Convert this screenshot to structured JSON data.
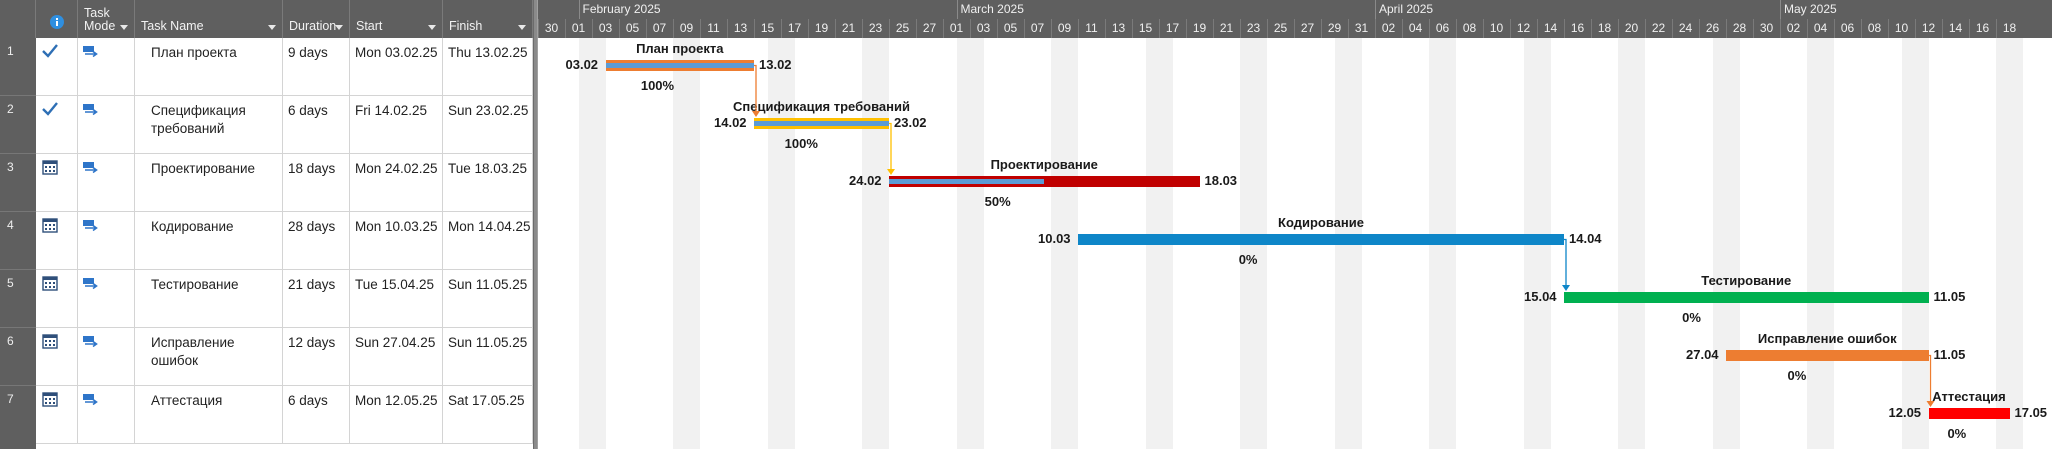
{
  "columns": {
    "info_icon": "info-icon",
    "task_mode": "Task Mode",
    "task_name": "Task Name",
    "duration": "Duration",
    "start": "Start",
    "finish": "Finish"
  },
  "tasks": [
    {
      "id": "1",
      "name": "План проекта",
      "duration": "9 days",
      "start": "Mon 03.02.25",
      "finish": "Thu 13.02.25",
      "status": "complete",
      "bar_start": "03.02",
      "bar_end": "13.02",
      "percent": "100%",
      "progress": 1.0,
      "color": "#ed7d31",
      "progress_color": "#5b9bd5"
    },
    {
      "id": "2",
      "name": "Спецификация требований",
      "duration": "6 days",
      "start": "Fri 14.02.25",
      "finish": "Sun 23.02.25",
      "status": "complete",
      "bar_start": "14.02",
      "bar_end": "23.02",
      "percent": "100%",
      "progress": 1.0,
      "color": "#ffc000",
      "progress_color": "#5b9bd5"
    },
    {
      "id": "3",
      "name": "Проектирование",
      "duration": "18 days",
      "start": "Mon 24.02.25",
      "finish": "Tue 18.03.25",
      "status": "scheduled",
      "bar_start": "24.02",
      "bar_end": "18.03",
      "percent": "50%",
      "progress": 0.5,
      "color": "#c00000",
      "progress_color": "#5b9bd5"
    },
    {
      "id": "4",
      "name": "Кодирование",
      "duration": "28 days",
      "start": "Mon 10.03.25",
      "finish": "Mon 14.04.25",
      "status": "scheduled",
      "bar_start": "10.03",
      "bar_end": "14.04",
      "percent": "0%",
      "progress": 0,
      "color": "#0e86c8",
      "progress_color": "#5b9bd5"
    },
    {
      "id": "5",
      "name": "Тестирование",
      "duration": "21 days",
      "start": "Tue 15.04.25",
      "finish": "Sun 11.05.25",
      "status": "scheduled",
      "bar_start": "15.04",
      "bar_end": "11.05",
      "percent": "0%",
      "progress": 0,
      "color": "#00b050",
      "progress_color": "#5b9bd5"
    },
    {
      "id": "6",
      "name": "Исправление ошибок",
      "duration": "12 days",
      "start": "Sun 27.04.25",
      "finish": "Sun 11.05.25",
      "status": "scheduled",
      "bar_start": "27.04",
      "bar_end": "11.05",
      "percent": "0%",
      "progress": 0,
      "color": "#ed7d31",
      "progress_color": "#5b9bd5"
    },
    {
      "id": "7",
      "name": "Аттестация",
      "duration": "6 days",
      "start": "Mon 12.05.25",
      "finish": "Sat 17.05.25",
      "status": "scheduled",
      "bar_start": "12.05",
      "bar_end": "17.05",
      "percent": "0%",
      "progress": 0,
      "color": "#ff0000",
      "progress_color": "#5b9bd5"
    }
  ],
  "timescale": {
    "months": [
      "February 2025",
      "March 2025",
      "April 2025",
      "May 2025"
    ],
    "days": [
      "30",
      "01",
      "03",
      "05",
      "07",
      "09",
      "11",
      "13",
      "15",
      "17",
      "19",
      "21",
      "23",
      "25",
      "27",
      "01",
      "03",
      "05",
      "07",
      "09",
      "11",
      "13",
      "15",
      "17",
      "19",
      "21",
      "23",
      "25",
      "27",
      "29",
      "31",
      "02",
      "04",
      "06",
      "08",
      "10",
      "12",
      "14",
      "16",
      "18",
      "20",
      "22",
      "24",
      "26",
      "28",
      "30",
      "02",
      "04",
      "06",
      "08",
      "10",
      "12",
      "14",
      "16",
      "18"
    ]
  },
  "links": [
    {
      "from": "1",
      "to": "2"
    },
    {
      "from": "2",
      "to": "3"
    },
    {
      "from": "4",
      "to": "5"
    },
    {
      "from": "6",
      "to": "7"
    }
  ]
}
